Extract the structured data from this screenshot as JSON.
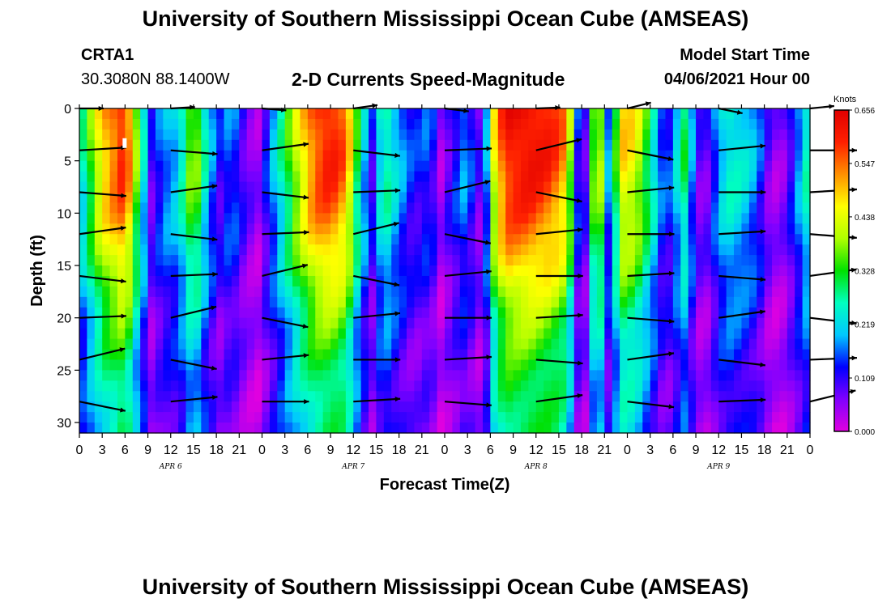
{
  "page": {
    "title_top": "University of Southern Mississippi Ocean Cube (AMSEAS)",
    "title_bottom": "University of Southern Mississippi Ocean Cube (AMSEAS)",
    "station": "CRTA1",
    "coords": "30.3080N  88.1400W",
    "plot_title": "2-D Currents Speed-Magnitude",
    "model_start_label": "Model Start Time",
    "model_start_value": "04/06/2021 Hour 00"
  },
  "chart_data": {
    "type": "heatmap",
    "title": "2-D Currents Speed-Magnitude",
    "xlabel": "Forecast Time(Z)",
    "ylabel": "Depth (ft)",
    "x_unit": "hours since 04/06/2021 00Z",
    "xlim": [
      0,
      96
    ],
    "ylim": [
      0,
      31
    ],
    "y_inverted": true,
    "x_ticks": [
      0,
      3,
      6,
      9,
      12,
      15,
      18,
      21,
      24,
      27,
      30,
      33,
      36,
      39,
      42,
      45,
      48,
      51,
      54,
      57,
      60,
      63,
      66,
      69,
      72,
      75,
      78,
      81,
      84,
      87,
      90,
      93,
      96
    ],
    "x_tick_labels": [
      "0",
      "3",
      "6",
      "9",
      "12",
      "15",
      "18",
      "21",
      "0",
      "3",
      "6",
      "9",
      "12",
      "15",
      "18",
      "21",
      "0",
      "3",
      "6",
      "9",
      "12",
      "15",
      "18",
      "21",
      "0",
      "3",
      "6",
      "9",
      "12",
      "15",
      "18",
      "21",
      "0"
    ],
    "day_labels": [
      {
        "x": 12,
        "label": "APR  6"
      },
      {
        "x": 36,
        "label": "APR  7"
      },
      {
        "x": 60,
        "label": "APR  8"
      },
      {
        "x": 84,
        "label": "APR  9"
      }
    ],
    "y_ticks": [
      0,
      5,
      10,
      15,
      20,
      25,
      30
    ],
    "y_tick_labels": [
      "0",
      "5",
      "10",
      "15",
      "20",
      "25",
      "30"
    ],
    "colorbar": {
      "unit": "Knots",
      "min": 0.0,
      "max": 0.656,
      "tick_values": [
        0.656,
        0.547,
        0.438,
        0.328,
        0.219,
        0.109,
        0.0
      ],
      "tick_labels": [
        "0.656",
        "0.547",
        "0.438",
        "0.328",
        "0.219",
        "0.109",
        "0.000"
      ],
      "colors": [
        "#e000e0",
        "#8000ff",
        "#0000ff",
        "#00c8ff",
        "#00ffc0",
        "#00e000",
        "#b0ff00",
        "#ffff00",
        "#ff9000",
        "#ff2000",
        "#e00000"
      ]
    },
    "speed_columns": [
      {
        "t": 0,
        "s": 0.22
      },
      {
        "t": 1.5,
        "s": 0.36
      },
      {
        "t": 3,
        "s": 0.5
      },
      {
        "t": 6,
        "s": 0.62
      },
      {
        "t": 8,
        "s": 0.3
      },
      {
        "t": 9.5,
        "s": 0.1
      },
      {
        "t": 11,
        "s": 0.18
      },
      {
        "t": 13,
        "s": 0.22
      },
      {
        "t": 15,
        "s": 0.42
      },
      {
        "t": 17,
        "s": 0.2
      },
      {
        "t": 18.5,
        "s": 0.12
      },
      {
        "t": 20,
        "s": 0.18
      },
      {
        "t": 22,
        "s": 0.08
      },
      {
        "t": 23.5,
        "s": 0.05
      },
      {
        "t": 25,
        "s": 0.16
      },
      {
        "t": 27,
        "s": 0.3
      },
      {
        "t": 29,
        "s": 0.46
      },
      {
        "t": 31,
        "s": 0.58
      },
      {
        "t": 33,
        "s": 0.62
      },
      {
        "t": 35,
        "s": 0.55
      },
      {
        "t": 37,
        "s": 0.25
      },
      {
        "t": 38.5,
        "s": 0.12
      },
      {
        "t": 40,
        "s": 0.3
      },
      {
        "t": 42,
        "s": 0.2
      },
      {
        "t": 44,
        "s": 0.12
      },
      {
        "t": 46,
        "s": 0.16
      },
      {
        "t": 47.5,
        "s": 0.05
      },
      {
        "t": 49,
        "s": 0.12
      },
      {
        "t": 50.5,
        "s": 0.18
      },
      {
        "t": 52,
        "s": 0.12
      },
      {
        "t": 53,
        "s": 0.05
      },
      {
        "t": 54.5,
        "s": 0.45
      },
      {
        "t": 56,
        "s": 0.62
      },
      {
        "t": 59,
        "s": 0.64
      },
      {
        "t": 62,
        "s": 0.6
      },
      {
        "t": 64,
        "s": 0.52
      },
      {
        "t": 65.5,
        "s": 0.14
      },
      {
        "t": 66.5,
        "s": 0.1
      },
      {
        "t": 68,
        "s": 0.5
      },
      {
        "t": 69.5,
        "s": 0.18
      },
      {
        "t": 71.5,
        "s": 0.48
      },
      {
        "t": 73,
        "s": 0.46
      },
      {
        "t": 75,
        "s": 0.3
      },
      {
        "t": 77,
        "s": 0.12
      },
      {
        "t": 78,
        "s": 0.18
      },
      {
        "t": 79.5,
        "s": 0.3
      },
      {
        "t": 81,
        "s": 0.12
      },
      {
        "t": 82,
        "s": 0.05
      },
      {
        "t": 83.5,
        "s": 0.16
      },
      {
        "t": 85,
        "s": 0.26
      },
      {
        "t": 87,
        "s": 0.24
      },
      {
        "t": 89,
        "s": 0.18
      },
      {
        "t": 90.5,
        "s": 0.08
      },
      {
        "t": 92,
        "s": 0.04
      },
      {
        "t": 93.5,
        "s": 0.12
      },
      {
        "t": 95,
        "s": 0.22
      },
      {
        "t": 96,
        "s": 0.3
      }
    ],
    "depth_factor": [
      {
        "d": 0,
        "f": 1.0
      },
      {
        "d": 5,
        "f": 0.98
      },
      {
        "d": 10,
        "f": 0.9
      },
      {
        "d": 15,
        "f": 0.78
      },
      {
        "d": 20,
        "f": 0.62
      },
      {
        "d": 25,
        "f": 0.52
      },
      {
        "d": 31,
        "f": 0.48
      }
    ],
    "vectors": {
      "depths": [
        0,
        4,
        8,
        12,
        16,
        20,
        24,
        28
      ],
      "times": [
        0,
        12,
        24,
        36,
        48,
        60,
        72,
        84,
        96
      ],
      "note_marker": {
        "t": 6,
        "d": 3
      }
    }
  }
}
